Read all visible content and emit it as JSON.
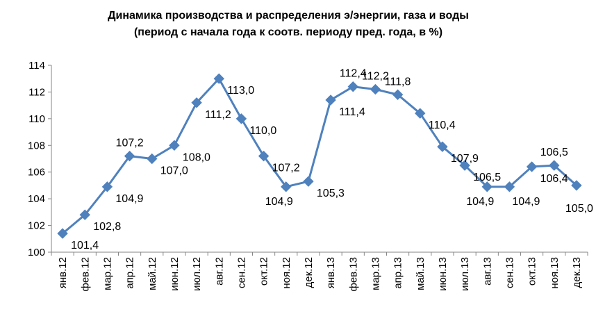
{
  "chart_data": {
    "type": "line",
    "title": "Динамика производства  и распределения э/энергии, газа и воды",
    "subtitle": "(период с начала года к соотв. периоду пред. года, в %)",
    "categories": [
      "янв.12",
      "фев.12",
      "мар.12",
      "апр.12",
      "май.12",
      "июн.12",
      "июл.12",
      "авг.12",
      "сен.12",
      "окт.12",
      "ноя.12",
      "дек.12",
      "янв.13",
      "фев.13",
      "мар.13",
      "апр.13",
      "май.13",
      "июн.13",
      "июл.13",
      "авг.13",
      "сен.13",
      "окт.13",
      "ноя.13",
      "дек.13"
    ],
    "values": [
      101.4,
      102.8,
      104.9,
      107.2,
      107.0,
      108.0,
      111.2,
      113.0,
      110.0,
      107.2,
      104.9,
      105.3,
      111.4,
      112.4,
      112.2,
      111.8,
      110.4,
      107.9,
      106.5,
      104.9,
      104.9,
      106.4,
      106.5,
      105.0
    ],
    "data_labels": [
      "101,4",
      "102,8",
      "104,9",
      "107,2",
      "107,0",
      "108,0",
      "111,2",
      "113,0",
      "110,0",
      "107,2",
      "104,9",
      "105,3",
      "111,4",
      "112,4",
      "112,2",
      "111,8",
      "110,4",
      "107,9",
      "106,5",
      "104,9",
      "104,9",
      "106,4",
      "106,5",
      "105,0"
    ],
    "ylim": [
      100,
      114
    ],
    "yticks": [
      "100",
      "102",
      "104",
      "106",
      "108",
      "110",
      "112",
      "114"
    ],
    "xlabel": "",
    "ylabel": "",
    "grid": false,
    "legend": "none",
    "color": "#4f81bd"
  }
}
